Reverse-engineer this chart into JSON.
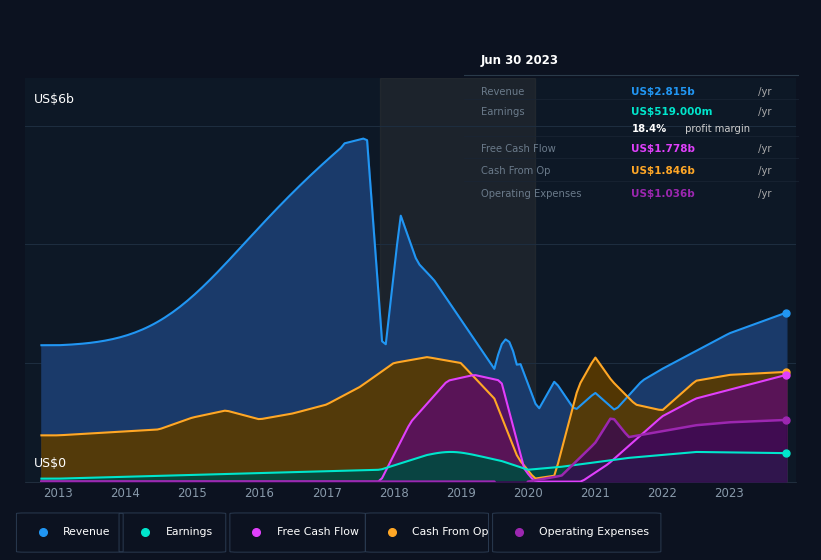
{
  "bg_color": "#0c1220",
  "plot_bg_color": "#0d1826",
  "grid_color": "#1e2e40",
  "ylabel_text": "US$6b",
  "y0_text": "US$0",
  "ylim": [
    0,
    6.8
  ],
  "xlim_start": 2012.5,
  "xlim_end": 2024.0,
  "xticks": [
    2013,
    2014,
    2015,
    2016,
    2017,
    2018,
    2019,
    2020,
    2021,
    2022,
    2023
  ],
  "yticks_gridlines": [
    2,
    4,
    6
  ],
  "series": {
    "revenue": {
      "color": "#2196f3",
      "fill_color": "#1a3a6a",
      "label": "Revenue",
      "dot_color": "#2196f3"
    },
    "earnings": {
      "color": "#00e5cc",
      "fill_color": "#004a40",
      "label": "Earnings",
      "dot_color": "#00e5cc"
    },
    "fcf": {
      "color": "#e040fb",
      "fill_color": "#5a1060",
      "label": "Free Cash Flow",
      "dot_color": "#e040fb"
    },
    "cashfromop": {
      "color": "#ffa726",
      "fill_color": "#5a3a00",
      "label": "Cash From Op",
      "dot_color": "#ffa726"
    },
    "opex": {
      "color": "#9c27b0",
      "fill_color": "#3a0a50",
      "label": "Operating Expenses",
      "dot_color": "#9c27b0"
    }
  },
  "tooltip_box": {
    "title": "Jun 30 2023",
    "rows": [
      {
        "label": "Revenue",
        "value": "US$2.815b",
        "suffix": " /yr",
        "value_color": "#2196f3"
      },
      {
        "label": "Earnings",
        "value": "US$519.000m",
        "suffix": " /yr",
        "value_color": "#00e5cc"
      },
      {
        "label": "",
        "value": "18.4%",
        "suffix": " profit margin",
        "value_color": "#ffffff",
        "is_margin": true
      },
      {
        "label": "Free Cash Flow",
        "value": "US$1.778b",
        "suffix": " /yr",
        "value_color": "#e040fb"
      },
      {
        "label": "Cash From Op",
        "value": "US$1.846b",
        "suffix": " /yr",
        "value_color": "#ffa726"
      },
      {
        "label": "Operating Expenses",
        "value": "US$1.036b",
        "suffix": " /yr",
        "value_color": "#9c27b0"
      }
    ]
  },
  "shaded_region": {
    "x_start": 2017.8,
    "x_end": 2020.1,
    "color": "#3a3a3a",
    "alpha": 0.35
  }
}
